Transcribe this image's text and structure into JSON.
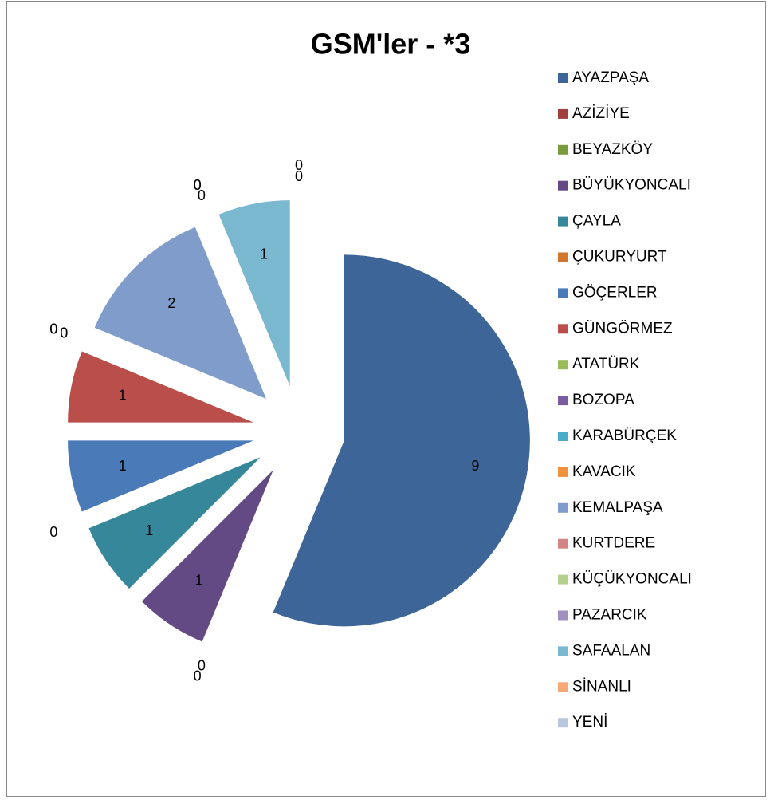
{
  "chart_data": {
    "type": "pie",
    "title": "GSM'ler - *3",
    "categories": [
      "AYAZPAŞA",
      "AZİZİYE",
      "BEYAZKÖY",
      "BÜYÜKYONCALI",
      "ÇAYLA",
      "ÇUKURYURT",
      "GÖÇERLER",
      "GÜNGÖRMEZ",
      "ATATÜRK",
      "BOZOPA",
      "KARABÜRÇEK",
      "KAVACIK",
      "KEMALPAŞA",
      "KURTDERE",
      "KÜÇÜKYONCALI",
      "PAZARCIK",
      "SAFAALAN",
      "SİNANLI",
      "YENİ"
    ],
    "values": [
      9,
      0,
      0,
      1,
      1,
      0,
      1,
      1,
      0,
      0,
      0,
      0,
      2,
      0,
      0,
      0,
      1,
      0,
      0
    ],
    "colors": [
      "#3e6597",
      "#a0403d",
      "#7a9a3e",
      "#644a85",
      "#36879a",
      "#d0772b",
      "#4a7ab8",
      "#b94e4b",
      "#9bbb59",
      "#7b5ca0",
      "#4aacc6",
      "#f0913c",
      "#7f9cca",
      "#d18585",
      "#b4d08f",
      "#a08fbf",
      "#7ab8cf",
      "#f8a876",
      "#b9c8e0"
    ],
    "legend": "right",
    "exploded": true
  }
}
